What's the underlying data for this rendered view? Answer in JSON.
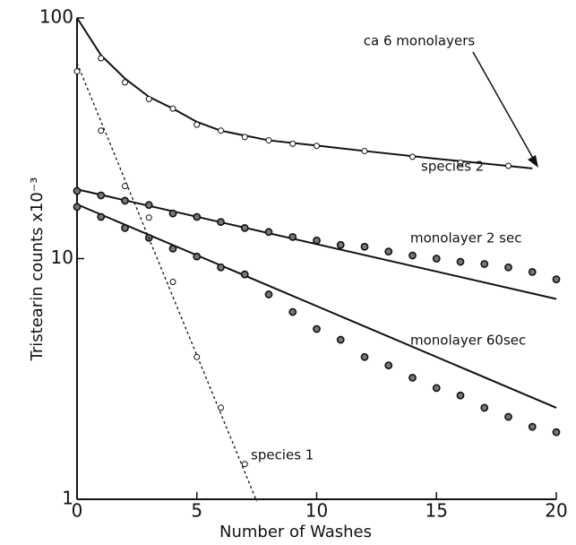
{
  "chart_data": {
    "type": "scatter",
    "xlabel": "Number of Washes",
    "ylabel": "Tristearin counts x10⁻³",
    "xlim": [
      0,
      20
    ],
    "xticks": [
      0,
      5,
      10,
      15,
      20
    ],
    "ylim": [
      1,
      100
    ],
    "yticks": [
      1,
      10,
      100
    ],
    "log_y": true,
    "annotation": "ca 6 monolayers",
    "series": [
      {
        "name": "species 2",
        "color": "#111111",
        "marker": "open",
        "line_style": "solid",
        "x": [
          1,
          2,
          3,
          4,
          5,
          6,
          7,
          8,
          9,
          10,
          12,
          14,
          16,
          18
        ],
        "values": [
          68,
          54,
          46,
          42,
          36,
          34,
          32,
          31,
          30,
          29.4,
          28,
          26.5,
          25,
          24.3
        ],
        "line_x": [
          0,
          1,
          2,
          3,
          4,
          5,
          6,
          8,
          10,
          12,
          15,
          19
        ],
        "line_values": [
          100,
          70,
          56,
          47,
          42,
          37,
          34,
          31,
          29.5,
          28,
          26,
          23.7
        ]
      },
      {
        "name": "monolayer  2 sec",
        "color": "#111111",
        "marker": "filled",
        "line_style": "solid",
        "x": [
          0,
          1,
          2,
          3,
          4,
          5,
          6,
          7,
          8,
          9,
          10,
          11,
          12,
          13,
          14,
          15,
          16,
          17,
          18,
          19,
          20
        ],
        "values": [
          19.1,
          18.3,
          17.4,
          16.7,
          15.4,
          14.9,
          14.2,
          13.4,
          12.9,
          12.3,
          11.9,
          11.4,
          11.2,
          10.7,
          10.3,
          10.0,
          9.7,
          9.5,
          9.2,
          8.8,
          8.2
        ],
        "line_x": [
          0,
          20
        ],
        "line_values": [
          19.4,
          6.8
        ]
      },
      {
        "name": "monolayer  60sec",
        "color": "#111111",
        "marker": "filled",
        "line_style": "solid",
        "x": [
          0,
          1,
          2,
          3,
          4,
          5,
          6,
          7,
          8,
          9,
          10,
          11,
          12,
          13,
          14,
          15,
          16,
          17,
          18,
          19,
          20
        ],
        "values": [
          16.4,
          14.9,
          13.4,
          12.2,
          11.0,
          10.2,
          9.2,
          8.6,
          7.1,
          6.0,
          5.1,
          4.6,
          3.9,
          3.6,
          3.2,
          2.9,
          2.7,
          2.4,
          2.2,
          2.0,
          1.9
        ],
        "line_x": [
          0,
          20
        ],
        "line_values": [
          16.8,
          2.4
        ]
      },
      {
        "name": "species 1",
        "color": "#111111",
        "marker": "open",
        "line_style": "dotted",
        "x": [
          0,
          1,
          2,
          3,
          4,
          5,
          6,
          7
        ],
        "values": [
          60,
          34,
          20,
          14.8,
          8.0,
          3.9,
          2.4,
          1.4
        ],
        "line_x": [
          0,
          7.5
        ],
        "line_values": [
          65,
          0.98
        ]
      }
    ]
  }
}
